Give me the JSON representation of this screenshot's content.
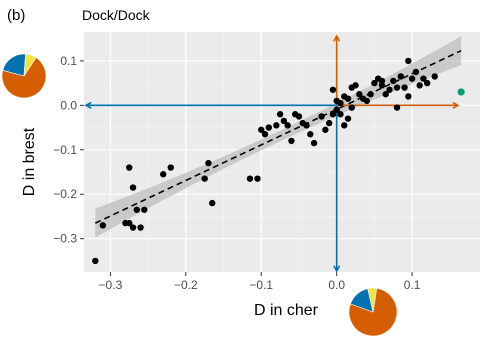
{
  "panel_label": "(b)",
  "colors": {
    "panel_bg": "#ebebeb",
    "grid_major": "#ffffff",
    "grid_minor": "#f5f5f5",
    "point": "#000000",
    "highlight_point": "#009e73",
    "orange": "#d55e00",
    "blue": "#0072b2",
    "yellow": "#f0e442",
    "ribbon": "#bdbdbd"
  },
  "chart_data": {
    "type": "scatter",
    "title": "Dock/Dock",
    "xlabel": "D in cher",
    "ylabel": "D in brest",
    "xlim": [
      -0.335,
      0.19
    ],
    "ylim": [
      -0.375,
      0.165
    ],
    "x_ticks": [
      -0.3,
      -0.2,
      -0.1,
      0.0,
      0.1
    ],
    "x_tick_labels": [
      "−0.3",
      "−0.2",
      "−0.1",
      "0.0",
      "0.1"
    ],
    "y_ticks": [
      -0.3,
      -0.2,
      -0.1,
      0.0,
      0.1
    ],
    "y_tick_labels": [
      "−0.3",
      "−0.2",
      "−0.1",
      "0.0",
      "0.1"
    ],
    "grid": true,
    "trend_line": {
      "style": "dashed",
      "x": [
        -0.32,
        0.165
      ],
      "y": [
        -0.265,
        0.123
      ],
      "ci_band": true
    },
    "points": [
      [
        -0.32,
        -0.35
      ],
      [
        -0.31,
        -0.27
      ],
      [
        -0.28,
        -0.265
      ],
      [
        -0.275,
        -0.265
      ],
      [
        -0.27,
        -0.275
      ],
      [
        -0.275,
        -0.14
      ],
      [
        -0.27,
        -0.185
      ],
      [
        -0.265,
        -0.235
      ],
      [
        -0.26,
        -0.275
      ],
      [
        -0.255,
        -0.235
      ],
      [
        -0.23,
        -0.155
      ],
      [
        -0.22,
        -0.14
      ],
      [
        -0.175,
        -0.165
      ],
      [
        -0.17,
        -0.13
      ],
      [
        -0.165,
        -0.22
      ],
      [
        -0.115,
        -0.165
      ],
      [
        -0.105,
        -0.165
      ],
      [
        -0.1,
        -0.055
      ],
      [
        -0.095,
        -0.065
      ],
      [
        -0.09,
        -0.05
      ],
      [
        -0.08,
        -0.045
      ],
      [
        -0.075,
        -0.02
      ],
      [
        -0.07,
        -0.035
      ],
      [
        -0.065,
        -0.045
      ],
      [
        -0.06,
        -0.08
      ],
      [
        -0.055,
        -0.02
      ],
      [
        -0.05,
        -0.025
      ],
      [
        -0.045,
        -0.04
      ],
      [
        -0.04,
        -0.045
      ],
      [
        -0.035,
        -0.065
      ],
      [
        -0.03,
        -0.085
      ],
      [
        -0.02,
        -0.025
      ],
      [
        -0.015,
        -0.055
      ],
      [
        -0.01,
        -0.04
      ],
      [
        -0.005,
        -0.02
      ],
      [
        0.0,
        -0.01
      ],
      [
        0.005,
        -0.02
      ],
      [
        0.01,
        -0.045
      ],
      [
        0.015,
        -0.03
      ],
      [
        0.02,
        -0.005
      ],
      [
        -0.005,
        0.035
      ],
      [
        0.0,
        0.01
      ],
      [
        0.005,
        0.005
      ],
      [
        0.01,
        0.02
      ],
      [
        0.015,
        0.015
      ],
      [
        0.02,
        0.04
      ],
      [
        0.025,
        0.045
      ],
      [
        0.03,
        0.025
      ],
      [
        0.035,
        0.015
      ],
      [
        0.04,
        0.01
      ],
      [
        0.045,
        0.025
      ],
      [
        0.05,
        0.05
      ],
      [
        0.055,
        0.06
      ],
      [
        0.06,
        0.045
      ],
      [
        0.065,
        0.025
      ],
      [
        0.07,
        0.035
      ],
      [
        0.075,
        0.055
      ],
      [
        0.08,
        0.04
      ],
      [
        0.085,
        0.065
      ],
      [
        0.09,
        0.04
      ],
      [
        0.095,
        0.02
      ],
      [
        0.1,
        0.06
      ],
      [
        0.105,
        0.075
      ],
      [
        0.11,
        0.045
      ],
      [
        0.115,
        0.06
      ],
      [
        0.095,
        0.1
      ],
      [
        0.12,
        0.05
      ],
      [
        0.13,
        0.065
      ],
      [
        0.08,
        -0.005
      ],
      [
        0.06,
        0.055
      ]
    ],
    "highlight_point": [
      0.165,
      0.03
    ],
    "crosshair": {
      "x": 0.0,
      "y": 0.0
    },
    "pie_left": [
      {
        "label": "orange",
        "value": 0.7
      },
      {
        "label": "blue",
        "value": 0.22
      },
      {
        "label": "yellow",
        "value": 0.08
      }
    ],
    "pie_bottom": [
      {
        "label": "orange",
        "value": 0.78
      },
      {
        "label": "blue",
        "value": 0.16
      },
      {
        "label": "yellow",
        "value": 0.06
      }
    ]
  }
}
